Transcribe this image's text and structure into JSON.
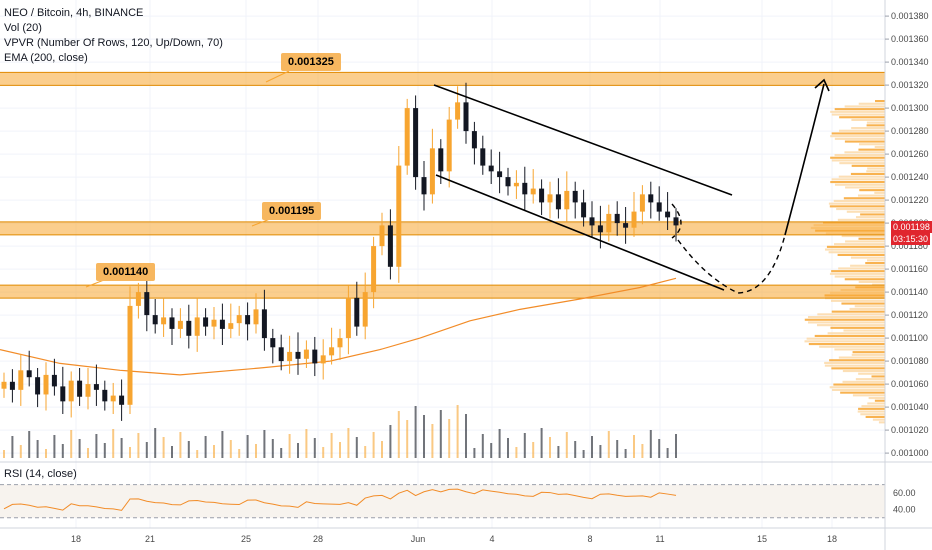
{
  "legend": {
    "symbol": "NEO / Bitcoin, 4h, BINANCE",
    "vol": "Vol (20)",
    "vpvr": "VPVR (Number Of Rows, 120, Up/Down, 70)",
    "ema": "EMA (200, close)"
  },
  "rsi_label": "RSI (14, close)",
  "levels": [
    {
      "label": "0.001325",
      "value": 0.001325
    },
    {
      "label": "0.001195",
      "value": 0.001195
    },
    {
      "label": "0.001140",
      "value": 0.00114
    }
  ],
  "current_price": "0.001198",
  "countdown": "03:15:30",
  "colors": {
    "up": "#f7a530",
    "down": "#131722",
    "level_band": "#f7a530",
    "ema": "#f28c28",
    "current": "#e0262e"
  },
  "chart_data": {
    "type": "candlestick",
    "title": "NEO / Bitcoin, 4h, BINANCE",
    "price_axis": {
      "ticks": [
        "0.001380",
        "0.001360",
        "0.001340",
        "0.001320",
        "0.001300",
        "0.001280",
        "0.001260",
        "0.001240",
        "0.001220",
        "0.001200",
        "0.001180",
        "0.001160",
        "0.001140",
        "0.001120",
        "0.001100",
        "0.001080",
        "0.001060",
        "0.001040",
        "0.001020",
        "0.001000"
      ],
      "ylim": [
        0.000994,
        0.001394
      ]
    },
    "date_ticks": [
      "18",
      "21",
      "25",
      "28",
      "Jun",
      "4",
      "8",
      "11",
      "15",
      "18"
    ],
    "rsi_axis": {
      "ticks": [
        "60.00",
        "40.00"
      ],
      "bands": [
        70,
        30
      ]
    },
    "close_series": [
      0.001062,
      0.001055,
      0.001072,
      0.001066,
      0.001051,
      0.001068,
      0.001058,
      0.001045,
      0.001063,
      0.001049,
      0.00106,
      0.001055,
      0.001045,
      0.00105,
      0.001042,
      0.001128,
      0.00114,
      0.00112,
      0.001112,
      0.001118,
      0.001108,
      0.001115,
      0.001102,
      0.001118,
      0.00111,
      0.001116,
      0.001108,
      0.001113,
      0.00112,
      0.001112,
      0.001125,
      0.0011,
      0.001092,
      0.00108,
      0.001088,
      0.001082,
      0.00109,
      0.001078,
      0.001085,
      0.001092,
      0.0011,
      0.001135,
      0.00111,
      0.00114,
      0.00118,
      0.001198,
      0.001162,
      0.00125,
      0.0013,
      0.00124,
      0.001225,
      0.001265,
      0.001245,
      0.00129,
      0.001305,
      0.00128,
      0.001265,
      0.00125,
      0.001245,
      0.00124,
      0.001232,
      0.001235,
      0.001225,
      0.00123,
      0.001218,
      0.001225,
      0.001212,
      0.001228,
      0.001218,
      0.001205,
      0.001198,
      0.001192,
      0.001208,
      0.0012,
      0.001196,
      0.00121,
      0.001225,
      0.001218,
      0.00121,
      0.001205,
      0.001198
    ],
    "ema_series": [
      {
        "x": 0,
        "y": 0.00109
      },
      {
        "x": 60,
        "y": 0.001078
      },
      {
        "x": 120,
        "y": 0.001072
      },
      {
        "x": 180,
        "y": 0.001068
      },
      {
        "x": 260,
        "y": 0.001074
      },
      {
        "x": 330,
        "y": 0.00108
      },
      {
        "x": 380,
        "y": 0.00109
      },
      {
        "x": 420,
        "y": 0.0011
      },
      {
        "x": 470,
        "y": 0.001115
      },
      {
        "x": 520,
        "y": 0.001125
      },
      {
        "x": 580,
        "y": 0.001134
      },
      {
        "x": 640,
        "y": 0.001144
      },
      {
        "x": 676,
        "y": 0.001152
      }
    ],
    "annotations": [
      "descending channel",
      "projected dashed path to 0.001140 then arrow up to 0.001325"
    ]
  }
}
